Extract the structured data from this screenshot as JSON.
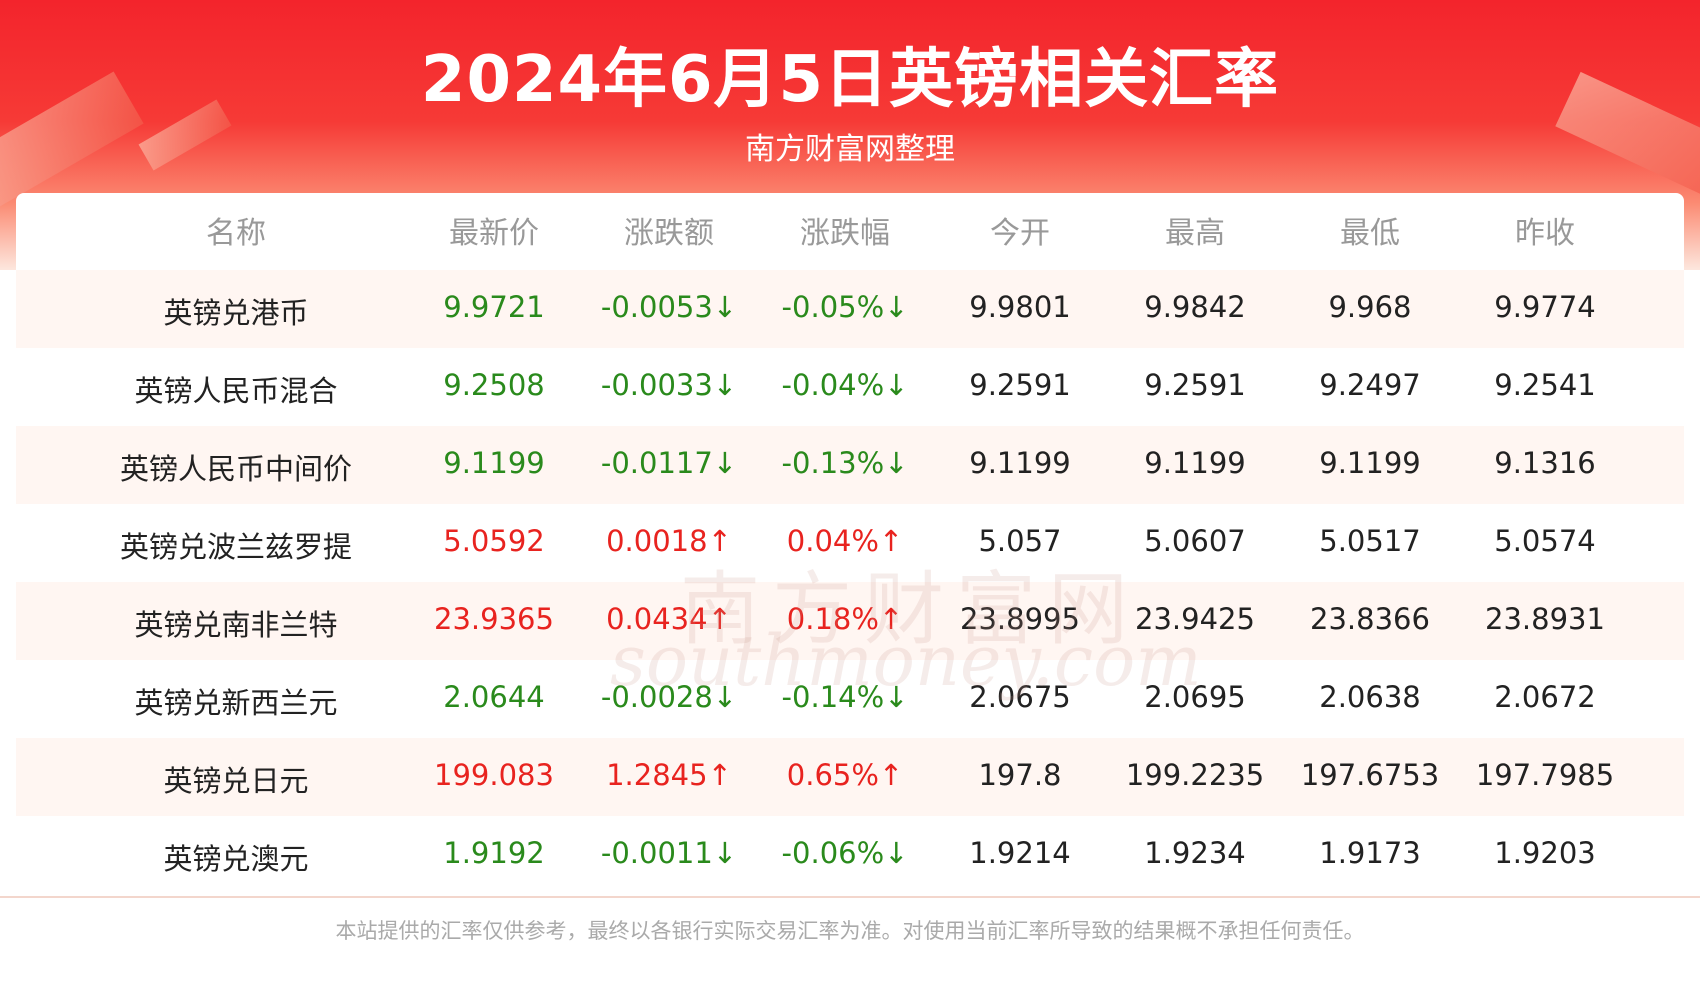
{
  "header": {
    "title": "2024年6月5日英镑相关汇率",
    "subtitle": "南方财富网整理"
  },
  "watermark": {
    "cn": "南方财富网",
    "en": "southmoney.com"
  },
  "table": {
    "columns": [
      "名称",
      "最新价",
      "涨跌额",
      "涨跌幅",
      "今开",
      "最高",
      "最低",
      "昨收"
    ],
    "rows": [
      {
        "color": "#2a8a1c",
        "cells": [
          "英镑兑港币",
          "9.9721",
          "-0.0053↓",
          "-0.05%↓",
          "9.9801",
          "9.9842",
          "9.968",
          "9.9774"
        ]
      },
      {
        "color": "#2a8a1c",
        "cells": [
          "英镑人民币混合",
          "9.2508",
          "-0.0033↓",
          "-0.04%↓",
          "9.2591",
          "9.2591",
          "9.2497",
          "9.2541"
        ]
      },
      {
        "color": "#2a8a1c",
        "cells": [
          "英镑人民币中间价",
          "9.1199",
          "-0.0117↓",
          "-0.13%↓",
          "9.1199",
          "9.1199",
          "9.1199",
          "9.1316"
        ]
      },
      {
        "color": "#e8231f",
        "cells": [
          "英镑兑波兰兹罗提",
          "5.0592",
          "0.0018↑",
          "0.04%↑",
          "5.057",
          "5.0607",
          "5.0517",
          "5.0574"
        ]
      },
      {
        "color": "#e8231f",
        "cells": [
          "英镑兑南非兰特",
          "23.9365",
          "0.0434↑",
          "0.18%↑",
          "23.8995",
          "23.9425",
          "23.8366",
          "23.8931"
        ]
      },
      {
        "color": "#2a8a1c",
        "cells": [
          "英镑兑新西兰元",
          "2.0644",
          "-0.0028↓",
          "-0.14%↓",
          "2.0675",
          "2.0695",
          "2.0638",
          "2.0672"
        ]
      },
      {
        "color": "#e8231f",
        "cells": [
          "英镑兑日元",
          "199.083",
          "1.2845↑",
          "0.65%↑",
          "197.8",
          "199.2235",
          "197.6753",
          "197.7985"
        ]
      },
      {
        "color": "#2a8a1c",
        "cells": [
          "英镑兑澳元",
          "1.9192",
          "-0.0011↓",
          "-0.06%↓",
          "1.9214",
          "1.9234",
          "1.9173",
          "1.9203"
        ]
      }
    ]
  },
  "footer": {
    "note": "本站提供的汇率仅供参考，最终以各银行实际交易汇率为准。对使用当前汇率所导致的结果概不承担任何责任。"
  }
}
